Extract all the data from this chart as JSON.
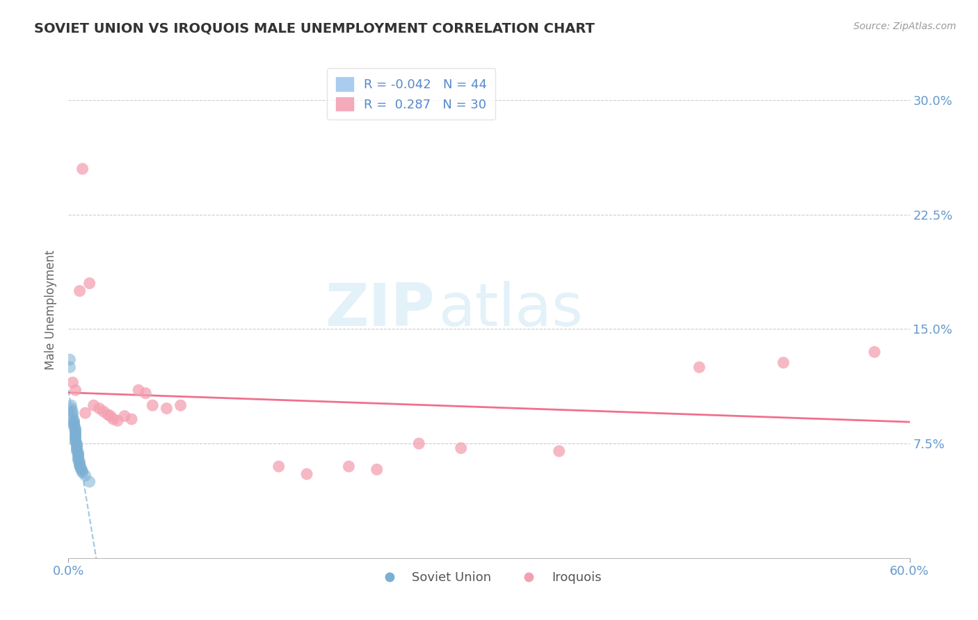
{
  "title": "SOVIET UNION VS IROQUOIS MALE UNEMPLOYMENT CORRELATION CHART",
  "source_text": "Source: ZipAtlas.com",
  "ylabel_text": "Male Unemployment",
  "xlim": [
    0.0,
    0.6
  ],
  "ylim": [
    0.0,
    0.325
  ],
  "xtick_positions": [
    0.0,
    0.6
  ],
  "xtick_labels": [
    "0.0%",
    "60.0%"
  ],
  "ytick_vals": [
    0.075,
    0.15,
    0.225,
    0.3
  ],
  "ytick_labels": [
    "7.5%",
    "15.0%",
    "22.5%",
    "30.0%"
  ],
  "legend_r_soviet": "-0.042",
  "legend_n_soviet": "44",
  "legend_r_iroquois": "0.287",
  "legend_n_iroquois": "30",
  "soviet_color": "#7bafd4",
  "iroquois_color": "#f4a0b0",
  "soviet_line_color": "#7bafd4",
  "iroquois_line_color": "#f06080",
  "background_color": "#ffffff",
  "watermark_zip": "ZIP",
  "watermark_atlas": "atlas",
  "soviet_points": [
    [
      0.001,
      0.13
    ],
    [
      0.001,
      0.125
    ],
    [
      0.002,
      0.1
    ],
    [
      0.002,
      0.098
    ],
    [
      0.003,
      0.096
    ],
    [
      0.003,
      0.094
    ],
    [
      0.003,
      0.092
    ],
    [
      0.004,
      0.09
    ],
    [
      0.004,
      0.089
    ],
    [
      0.004,
      0.088
    ],
    [
      0.004,
      0.087
    ],
    [
      0.004,
      0.086
    ],
    [
      0.005,
      0.085
    ],
    [
      0.005,
      0.084
    ],
    [
      0.005,
      0.083
    ],
    [
      0.005,
      0.082
    ],
    [
      0.005,
      0.081
    ],
    [
      0.005,
      0.08
    ],
    [
      0.005,
      0.079
    ],
    [
      0.005,
      0.078
    ],
    [
      0.005,
      0.077
    ],
    [
      0.005,
      0.076
    ],
    [
      0.006,
      0.075
    ],
    [
      0.006,
      0.074
    ],
    [
      0.006,
      0.073
    ],
    [
      0.006,
      0.072
    ],
    [
      0.006,
      0.071
    ],
    [
      0.006,
      0.07
    ],
    [
      0.007,
      0.069
    ],
    [
      0.007,
      0.068
    ],
    [
      0.007,
      0.067
    ],
    [
      0.007,
      0.066
    ],
    [
      0.007,
      0.065
    ],
    [
      0.007,
      0.064
    ],
    [
      0.008,
      0.063
    ],
    [
      0.008,
      0.062
    ],
    [
      0.008,
      0.061
    ],
    [
      0.008,
      0.06
    ],
    [
      0.009,
      0.059
    ],
    [
      0.009,
      0.058
    ],
    [
      0.01,
      0.057
    ],
    [
      0.01,
      0.056
    ],
    [
      0.012,
      0.054
    ],
    [
      0.015,
      0.05
    ]
  ],
  "iroquois_points": [
    [
      0.003,
      0.115
    ],
    [
      0.005,
      0.11
    ],
    [
      0.008,
      0.175
    ],
    [
      0.01,
      0.255
    ],
    [
      0.012,
      0.095
    ],
    [
      0.015,
      0.18
    ],
    [
      0.018,
      0.1
    ],
    [
      0.022,
      0.098
    ],
    [
      0.025,
      0.096
    ],
    [
      0.028,
      0.094
    ],
    [
      0.03,
      0.093
    ],
    [
      0.032,
      0.091
    ],
    [
      0.035,
      0.09
    ],
    [
      0.04,
      0.093
    ],
    [
      0.045,
      0.091
    ],
    [
      0.05,
      0.11
    ],
    [
      0.055,
      0.108
    ],
    [
      0.06,
      0.1
    ],
    [
      0.07,
      0.098
    ],
    [
      0.08,
      0.1
    ],
    [
      0.15,
      0.06
    ],
    [
      0.17,
      0.055
    ],
    [
      0.2,
      0.06
    ],
    [
      0.22,
      0.058
    ],
    [
      0.25,
      0.075
    ],
    [
      0.28,
      0.072
    ],
    [
      0.35,
      0.07
    ],
    [
      0.45,
      0.125
    ],
    [
      0.51,
      0.128
    ],
    [
      0.575,
      0.135
    ]
  ]
}
